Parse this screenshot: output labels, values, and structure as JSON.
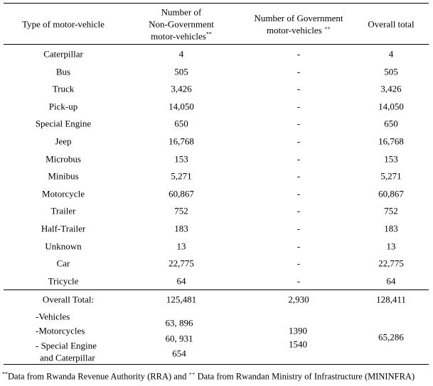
{
  "headers": {
    "type": "Type of motor-vehicle",
    "nongov_l1": "Number of",
    "nongov_l2": "Non-Government",
    "nongov_l3": "motor-vehicles",
    "nongov_mark": "**",
    "gov_l1": "Number of Government",
    "gov_l2": "motor-vehicles",
    "gov_mark": "++",
    "total": "Overall total"
  },
  "rows": [
    {
      "type": "Caterpillar",
      "nongov": "4",
      "gov": "-",
      "total": "4"
    },
    {
      "type": "Bus",
      "nongov": "505",
      "gov": "-",
      "total": "505"
    },
    {
      "type": "Truck",
      "nongov": "3,426",
      "gov": "-",
      "total": "3,426"
    },
    {
      "type": "Pick-up",
      "nongov": "14,050",
      "gov": "-",
      "total": "14,050"
    },
    {
      "type": "Special Engine",
      "nongov": "650",
      "gov": "-",
      "total": "650"
    },
    {
      "type": "Jeep",
      "nongov": "16,768",
      "gov": "-",
      "total": "16,768"
    },
    {
      "type": "Microbus",
      "nongov": "153",
      "gov": "-",
      "total": "153"
    },
    {
      "type": "Minibus",
      "nongov": "5,271",
      "gov": "-",
      "total": "5,271"
    },
    {
      "type": "Motorcycle",
      "nongov": "60,867",
      "gov": "-",
      "total": "60,867"
    },
    {
      "type": "Trailer",
      "nongov": "752",
      "gov": "-",
      "total": "752"
    },
    {
      "type": "Half-Trailer",
      "nongov": "183",
      "gov": "-",
      "total": "183"
    },
    {
      "type": "Unknown",
      "nongov": "13",
      "gov": "-",
      "total": "13"
    },
    {
      "type": "Car",
      "nongov": "22,775",
      "gov": "-",
      "total": "22,775"
    },
    {
      "type": "Tricycle",
      "nongov": "64",
      "gov": "-",
      "total": "64"
    }
  ],
  "overall": {
    "label": "Overall Total:",
    "nongov": "125,481",
    "gov": "2,930",
    "total": "128,411"
  },
  "breakdown": {
    "labels": [
      "-Vehicles",
      "-Motorcycles",
      "- Special Engine",
      "and Caterpillar"
    ],
    "nongov": [
      "63, 896",
      "60, 931",
      "654"
    ],
    "gov": [
      "1390",
      "1540"
    ],
    "total": "65,286"
  },
  "footnote": {
    "mark1": "**",
    "text1": "Data from Rwanda Revenue Authority (RRA) and ",
    "mark2": "++",
    "text2": " Data from Rwandan Ministry of Infrastructure (MININFRA)"
  }
}
